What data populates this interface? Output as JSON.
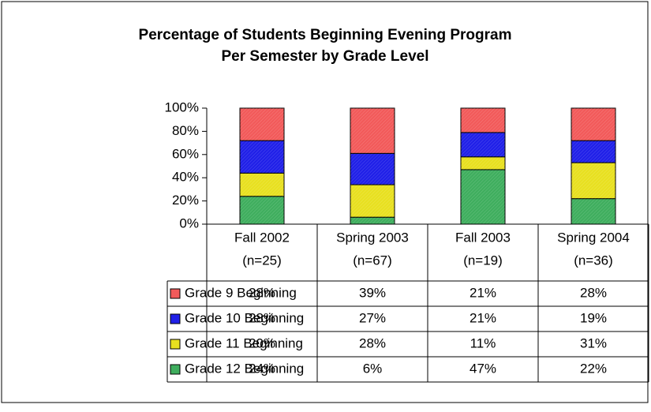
{
  "chart_data": {
    "type": "stacked_bar",
    "title": [
      "Percentage of Students Beginning Evening Program",
      "Per Semester by Grade Level"
    ],
    "categories": [
      "Fall 2002",
      "Spring 2003",
      "Fall 2003",
      "Spring 2004"
    ],
    "category_notes": [
      "(n=25)",
      "(n=67)",
      "(n=19)",
      "(n=36)"
    ],
    "series": [
      {
        "name": "Grade 9 Beginning",
        "color": "#f25a5a",
        "values": [
          28,
          39,
          21,
          28
        ],
        "value_labels": [
          "28%",
          "39%",
          "21%",
          "28%"
        ]
      },
      {
        "name": "Grade 10 Beginning",
        "color": "#2020e8",
        "values": [
          28,
          27,
          21,
          19
        ],
        "value_labels": [
          "28%",
          "27%",
          "21%",
          "19%"
        ]
      },
      {
        "name": "Grade 11 Beginning",
        "color": "#e8e020",
        "values": [
          20,
          28,
          11,
          31
        ],
        "value_labels": [
          "20%",
          "28%",
          "11%",
          "31%"
        ]
      },
      {
        "name": "Grade 12 Beginning",
        "color": "#3fae5e",
        "values": [
          24,
          6,
          47,
          22
        ],
        "value_labels": [
          "24%",
          "6%",
          "47%",
          "22%"
        ]
      }
    ],
    "ylim": [
      0,
      100
    ],
    "yticks": [
      {
        "value": 0,
        "label": "0%"
      },
      {
        "value": 20,
        "label": "20%"
      },
      {
        "value": 40,
        "label": "40%"
      },
      {
        "value": 60,
        "label": "60%"
      },
      {
        "value": 80,
        "label": "80%"
      },
      {
        "value": 100,
        "label": "100%"
      }
    ],
    "grid": false
  }
}
